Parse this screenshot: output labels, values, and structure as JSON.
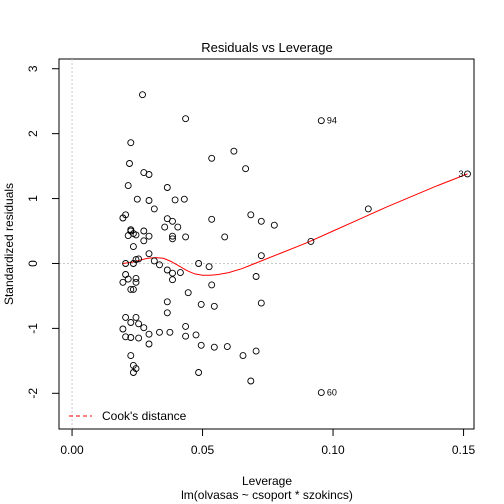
{
  "chart_data": {
    "type": "scatter",
    "title": "Residuals vs Leverage",
    "xlabel": "Leverage",
    "ylabel": "Standardized residuals",
    "subtitle": "lm(olvasas ~ csoport * szokincs)",
    "xlim": [
      -0.005,
      0.154
    ],
    "ylim": [
      -2.55,
      3.15
    ],
    "xticks": [
      0.0,
      0.05,
      0.1,
      0.15
    ],
    "xtick_labels": [
      "0.00",
      "0.05",
      "0.10",
      "0.15"
    ],
    "yticks": [
      -2,
      -1,
      0,
      1,
      2,
      3
    ],
    "ytick_labels": [
      "-2",
      "-1",
      "0",
      "1",
      "2",
      "3"
    ],
    "grid": false,
    "reference_lines": {
      "x": 0,
      "y": 0
    },
    "legend": {
      "position": "bottom-left",
      "entries": [
        "Cook's distance"
      ]
    },
    "colors": {
      "points": "#000000",
      "smooth": "#ff0000",
      "cooks": "#ff0000",
      "reference": "#c8c8c8"
    },
    "labeled_points": [
      {
        "label": "94",
        "x": 0.0965,
        "y": 2.2
      },
      {
        "label": "3",
        "x": 0.1515,
        "y": 1.38
      },
      {
        "label": "60",
        "x": 0.0965,
        "y": -1.99
      }
    ],
    "points": [
      [
        0.0955,
        2.2
      ],
      [
        0.1515,
        1.38
      ],
      [
        0.0955,
        -1.99
      ],
      [
        0.027,
        2.6
      ],
      [
        0.0435,
        2.23
      ],
      [
        0.0225,
        1.86
      ],
      [
        0.062,
        1.73
      ],
      [
        0.0535,
        1.62
      ],
      [
        0.022,
        1.54
      ],
      [
        0.0665,
        1.46
      ],
      [
        0.0275,
        1.4
      ],
      [
        0.0295,
        1.37
      ],
      [
        0.0215,
        1.2
      ],
      [
        0.0365,
        1.17
      ],
      [
        0.043,
        0.99
      ],
      [
        0.0295,
        0.97
      ],
      [
        0.025,
        0.99
      ],
      [
        0.0395,
        0.98
      ],
      [
        0.0315,
        0.84
      ],
      [
        0.1135,
        0.84
      ],
      [
        0.0205,
        0.75
      ],
      [
        0.0195,
        0.7
      ],
      [
        0.0685,
        0.75
      ],
      [
        0.0365,
        0.69
      ],
      [
        0.0535,
        0.68
      ],
      [
        0.0385,
        0.65
      ],
      [
        0.0725,
        0.65
      ],
      [
        0.0775,
        0.59
      ],
      [
        0.0355,
        0.56
      ],
      [
        0.0405,
        0.56
      ],
      [
        0.0225,
        0.52
      ],
      [
        0.0225,
        0.5
      ],
      [
        0.0275,
        0.5
      ],
      [
        0.0235,
        0.46
      ],
      [
        0.0245,
        0.44
      ],
      [
        0.0215,
        0.43
      ],
      [
        0.0295,
        0.42
      ],
      [
        0.0385,
        0.42
      ],
      [
        0.0435,
        0.41
      ],
      [
        0.0585,
        0.41
      ],
      [
        0.0385,
        0.38
      ],
      [
        0.0275,
        0.35
      ],
      [
        0.0915,
        0.34
      ],
      [
        0.0235,
        0.26
      ],
      [
        0.0295,
        0.15
      ],
      [
        0.0725,
        0.12
      ],
      [
        0.0255,
        0.07
      ],
      [
        0.0245,
        0.06
      ],
      [
        0.0315,
        0.04
      ],
      [
        0.0205,
        0.0
      ],
      [
        0.0235,
        0.0
      ],
      [
        0.0485,
        0.0
      ],
      [
        0.0335,
        -0.02
      ],
      [
        0.0525,
        -0.05
      ],
      [
        0.0365,
        -0.1
      ],
      [
        0.0415,
        -0.14
      ],
      [
        0.0385,
        -0.15
      ],
      [
        0.0205,
        -0.17
      ],
      [
        0.0705,
        -0.2
      ],
      [
        0.0215,
        -0.24
      ],
      [
        0.0245,
        -0.23
      ],
      [
        0.0385,
        -0.25
      ],
      [
        0.0195,
        -0.29
      ],
      [
        0.0245,
        -0.29
      ],
      [
        0.0535,
        -0.33
      ],
      [
        0.0225,
        -0.4
      ],
      [
        0.0235,
        -0.4
      ],
      [
        0.0445,
        -0.45
      ],
      [
        0.0365,
        -0.59
      ],
      [
        0.0725,
        -0.61
      ],
      [
        0.0495,
        -0.63
      ],
      [
        0.0545,
        -0.66
      ],
      [
        0.0365,
        -0.76
      ],
      [
        0.0205,
        -0.83
      ],
      [
        0.0245,
        -0.83
      ],
      [
        0.0225,
        -0.91
      ],
      [
        0.0255,
        -0.93
      ],
      [
        0.0275,
        -0.99
      ],
      [
        0.0435,
        -0.97
      ],
      [
        0.0195,
        -1.01
      ],
      [
        0.0335,
        -1.06
      ],
      [
        0.0375,
        -1.06
      ],
      [
        0.0295,
        -1.09
      ],
      [
        0.0435,
        -1.12
      ],
      [
        0.0475,
        -1.1
      ],
      [
        0.0205,
        -1.13
      ],
      [
        0.0225,
        -1.14
      ],
      [
        0.0255,
        -1.15
      ],
      [
        0.0295,
        -1.24
      ],
      [
        0.0495,
        -1.26
      ],
      [
        0.0545,
        -1.29
      ],
      [
        0.0595,
        -1.28
      ],
      [
        0.0705,
        -1.35
      ],
      [
        0.0225,
        -1.42
      ],
      [
        0.0655,
        -1.42
      ],
      [
        0.0235,
        -1.57
      ],
      [
        0.0245,
        -1.62
      ],
      [
        0.0235,
        -1.68
      ],
      [
        0.0485,
        -1.68
      ],
      [
        0.0685,
        -1.81
      ]
    ],
    "smooth_curve": [
      [
        0.0195,
        0.0
      ],
      [
        0.023,
        0.02
      ],
      [
        0.026,
        0.05
      ],
      [
        0.029,
        0.08
      ],
      [
        0.032,
        0.09
      ],
      [
        0.035,
        0.08
      ],
      [
        0.038,
        0.03
      ],
      [
        0.041,
        -0.04
      ],
      [
        0.044,
        -0.11
      ],
      [
        0.047,
        -0.16
      ],
      [
        0.05,
        -0.18
      ],
      [
        0.053,
        -0.18
      ],
      [
        0.056,
        -0.17
      ],
      [
        0.06,
        -0.14
      ],
      [
        0.065,
        -0.08
      ],
      [
        0.07,
        0.0
      ],
      [
        0.08,
        0.16
      ],
      [
        0.09,
        0.32
      ],
      [
        0.1,
        0.5
      ],
      [
        0.11,
        0.68
      ],
      [
        0.12,
        0.86
      ],
      [
        0.13,
        1.03
      ],
      [
        0.14,
        1.2
      ],
      [
        0.1515,
        1.38
      ]
    ]
  }
}
